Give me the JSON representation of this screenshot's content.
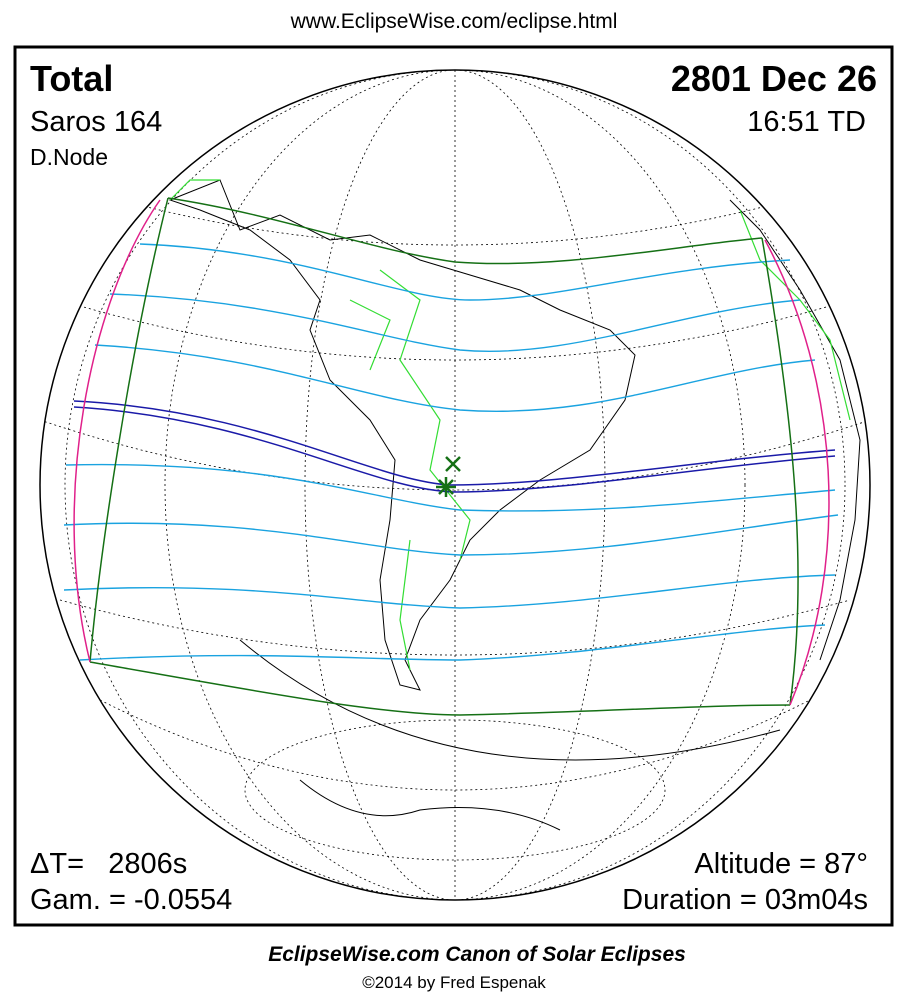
{
  "header": {
    "url": "www.EclipseWise.com/eclipse.html"
  },
  "map": {
    "eclipse_type": "Total",
    "date": "2801 Dec 26",
    "saros": "Saros 164",
    "time": "16:51 TD",
    "node": "D.Node",
    "delta_t": "ΔT=   2806s",
    "gamma": "Gam. = -0.0554",
    "altitude": "Altitude = 87°",
    "duration": "Duration = 03m04s"
  },
  "footer": {
    "title": "EclipseWise.com Canon of Solar Eclipses",
    "copyright": "©2014 by Fred Espenak"
  }
}
